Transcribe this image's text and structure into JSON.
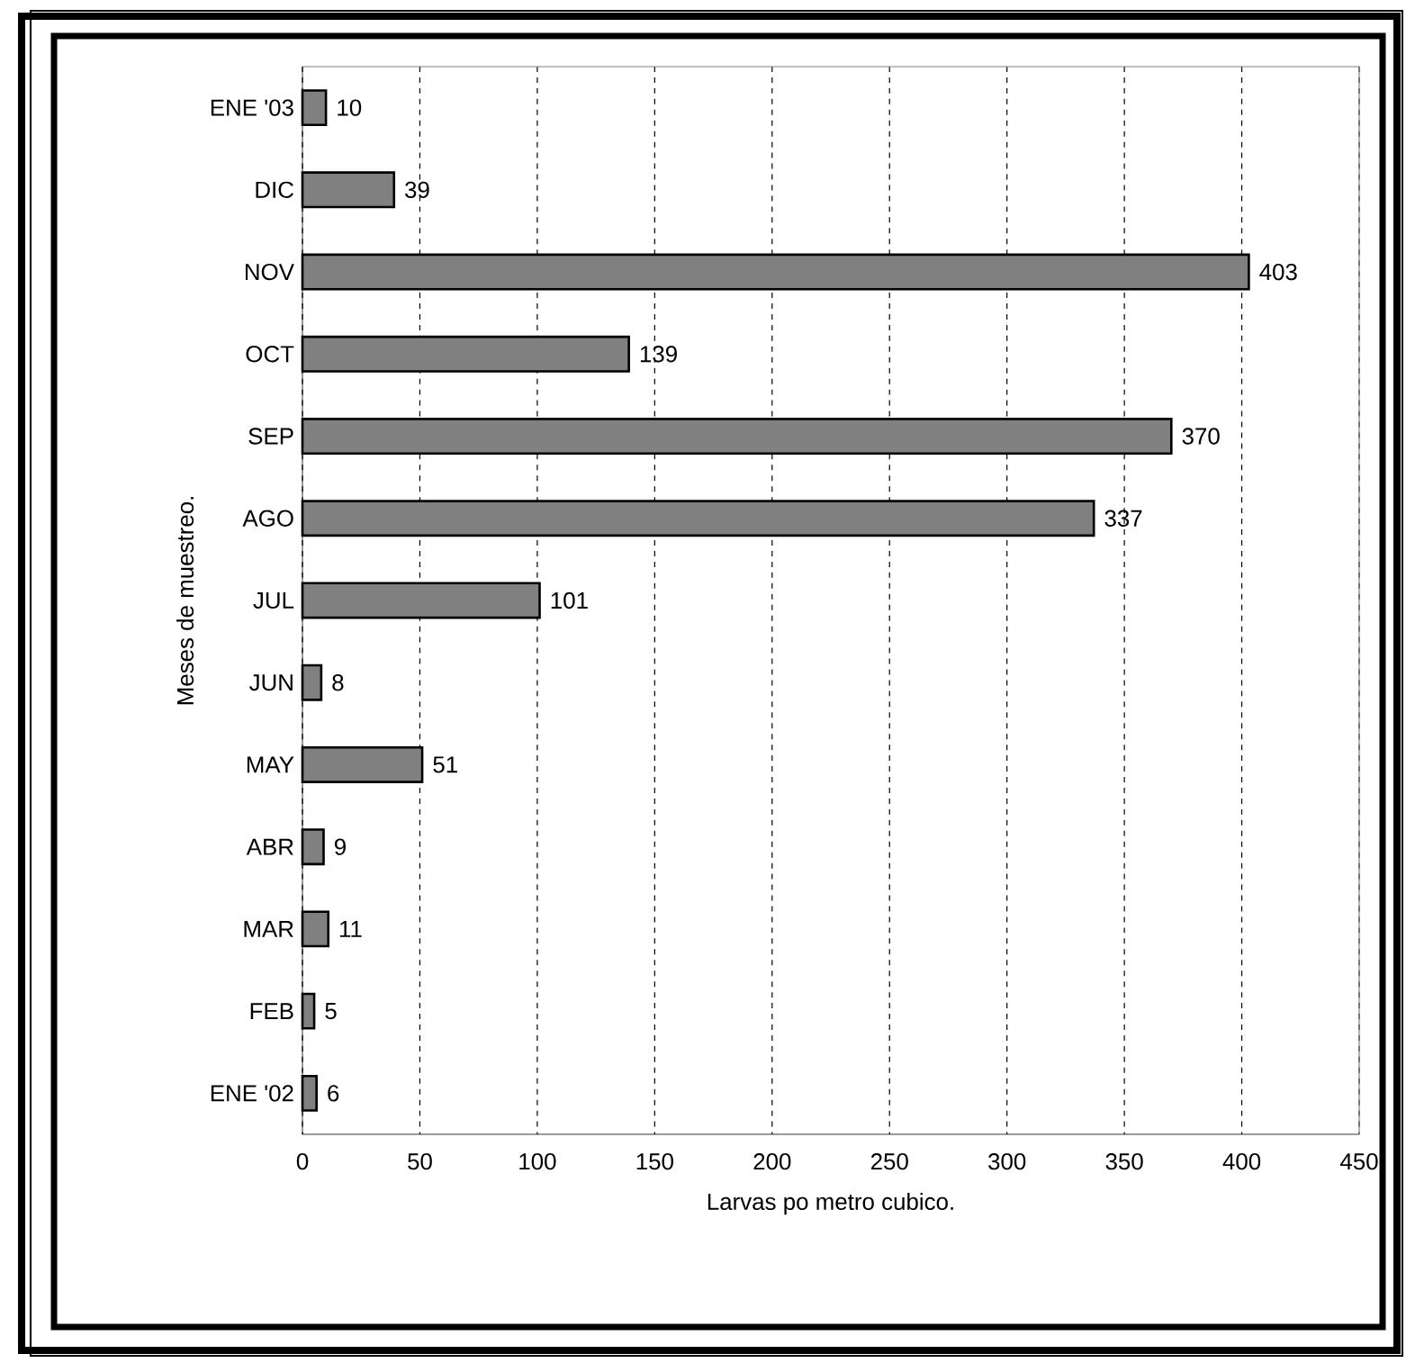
{
  "chart_data": {
    "type": "bar",
    "orientation": "horizontal",
    "categories": [
      "ENE '03",
      "DIC",
      "NOV",
      "OCT",
      "SEP",
      "AGO",
      "JUL",
      "JUN",
      "MAY",
      "ABR",
      "MAR",
      "FEB",
      "ENE '02"
    ],
    "values": [
      10,
      39,
      403,
      139,
      370,
      337,
      101,
      8,
      51,
      9,
      11,
      5,
      6
    ],
    "color": "#808080",
    "xlabel": "Larvas po metro cubico.",
    "ylabel": "Meses de muestreo.",
    "xlim": [
      0,
      450
    ],
    "xticks": [
      0,
      50,
      100,
      150,
      200,
      250,
      300,
      350,
      400,
      450
    ],
    "grid": "x",
    "data_labels": true
  }
}
